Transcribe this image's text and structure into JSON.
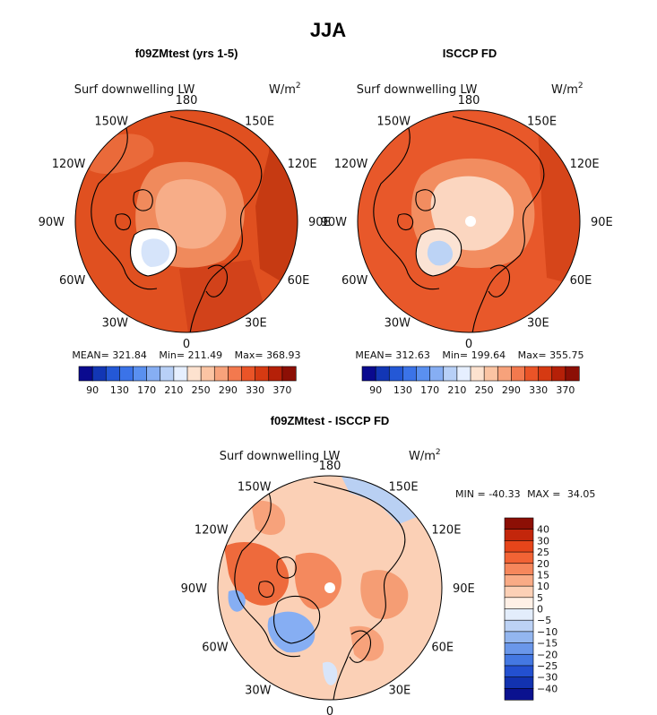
{
  "chart_data": {
    "type": "polar-map",
    "title": "JJA",
    "variable": "Surf downwelling LW",
    "units_base": "W/m",
    "units_exp": "2",
    "lon_labels": [
      "180",
      "150E",
      "120E",
      "90E",
      "60E",
      "30E",
      "0",
      "30W",
      "60W",
      "90W",
      "120W",
      "150W"
    ],
    "panels": [
      {
        "title": "f09ZMtest (yrs 1-5)",
        "mean_label": "MEAN=",
        "mean": "321.84",
        "min_label": "Min=",
        "min": "211.49",
        "max_label": "Max=",
        "max": "368.93",
        "colorbar": {
          "levels": [
            90,
            110,
            130,
            150,
            170,
            190,
            210,
            230,
            250,
            270,
            290,
            310,
            330,
            350,
            370
          ],
          "tick_labels": [
            "90",
            "130",
            "170",
            "210",
            "250",
            "290",
            "330",
            "370"
          ]
        }
      },
      {
        "title": "ISCCP FD",
        "mean_label": "MEAN=",
        "mean": "312.63",
        "min_label": "Min=",
        "min": "199.64",
        "max_label": "Max=",
        "max": "355.75",
        "colorbar": {
          "levels": [
            90,
            110,
            130,
            150,
            170,
            190,
            210,
            230,
            250,
            270,
            290,
            310,
            330,
            350,
            370
          ],
          "tick_labels": [
            "90",
            "130",
            "170",
            "210",
            "250",
            "290",
            "330",
            "370"
          ]
        }
      },
      {
        "title": "f09ZMtest - ISCCP FD",
        "min_label": "MIN =",
        "min": "-40.33",
        "max_label": "MAX =",
        "max": "34.05",
        "colorbar": {
          "levels": [
            40,
            30,
            25,
            20,
            15,
            10,
            5,
            0,
            -5,
            -10,
            -15,
            -20,
            -25,
            -30,
            -40
          ],
          "tick_labels": [
            "40",
            "30",
            "25",
            "20",
            "15",
            "10",
            "5",
            "0",
            "−5",
            "−10",
            "−15",
            "−20",
            "−25",
            "−30",
            "−40"
          ]
        }
      }
    ],
    "colors": {
      "abs_scale": [
        "#0a0a8f",
        "#1236b5",
        "#2458d6",
        "#3b73e8",
        "#5a90f0",
        "#86aef3",
        "#b8d0f7",
        "#e6efff",
        "#fde2cf",
        "#fbc4a3",
        "#f7a27b",
        "#f3794e",
        "#ea5427",
        "#d63a12",
        "#b52008",
        "#8c0f05"
      ],
      "diff_scale": [
        "#8c0f05",
        "#c3260b",
        "#e6451a",
        "#f26335",
        "#f6875c",
        "#f9ab86",
        "#fcd0b6",
        "#fff0e6",
        "#e3edfb",
        "#bcd2f5",
        "#93b6ef",
        "#6a97ea",
        "#4478e2",
        "#2350d0",
        "#1232b0",
        "#0b128f"
      ]
    }
  }
}
